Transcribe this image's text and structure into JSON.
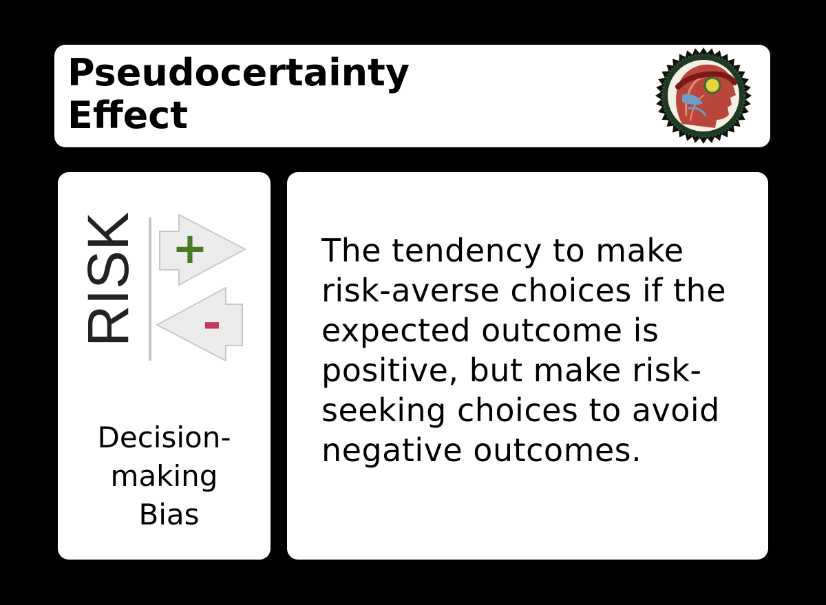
{
  "card": {
    "title_lines": [
      "Pseudocertainty",
      "Effect"
    ],
    "category": {
      "icon_text": "RISK",
      "plus_symbol": "+",
      "minus_symbol": "-",
      "label_lines": [
        "Decision-",
        "making",
        "Bias"
      ]
    },
    "description_lines": [
      "The tendency to make",
      "risk-averse choices if the",
      "expected outcome is",
      "positive, but make risk-",
      "seeking choices to avoid",
      "negative outcomes."
    ],
    "colors": {
      "plus": "#4a7a25",
      "minus": "#c2385e",
      "arrow_fill": "#ececec",
      "arrow_stroke": "#c8c8c8",
      "badge_ring": "#1e3a22"
    },
    "icons": {
      "badge": "laurel-head-seal-icon",
      "category": "risk-arrows-icon"
    }
  }
}
